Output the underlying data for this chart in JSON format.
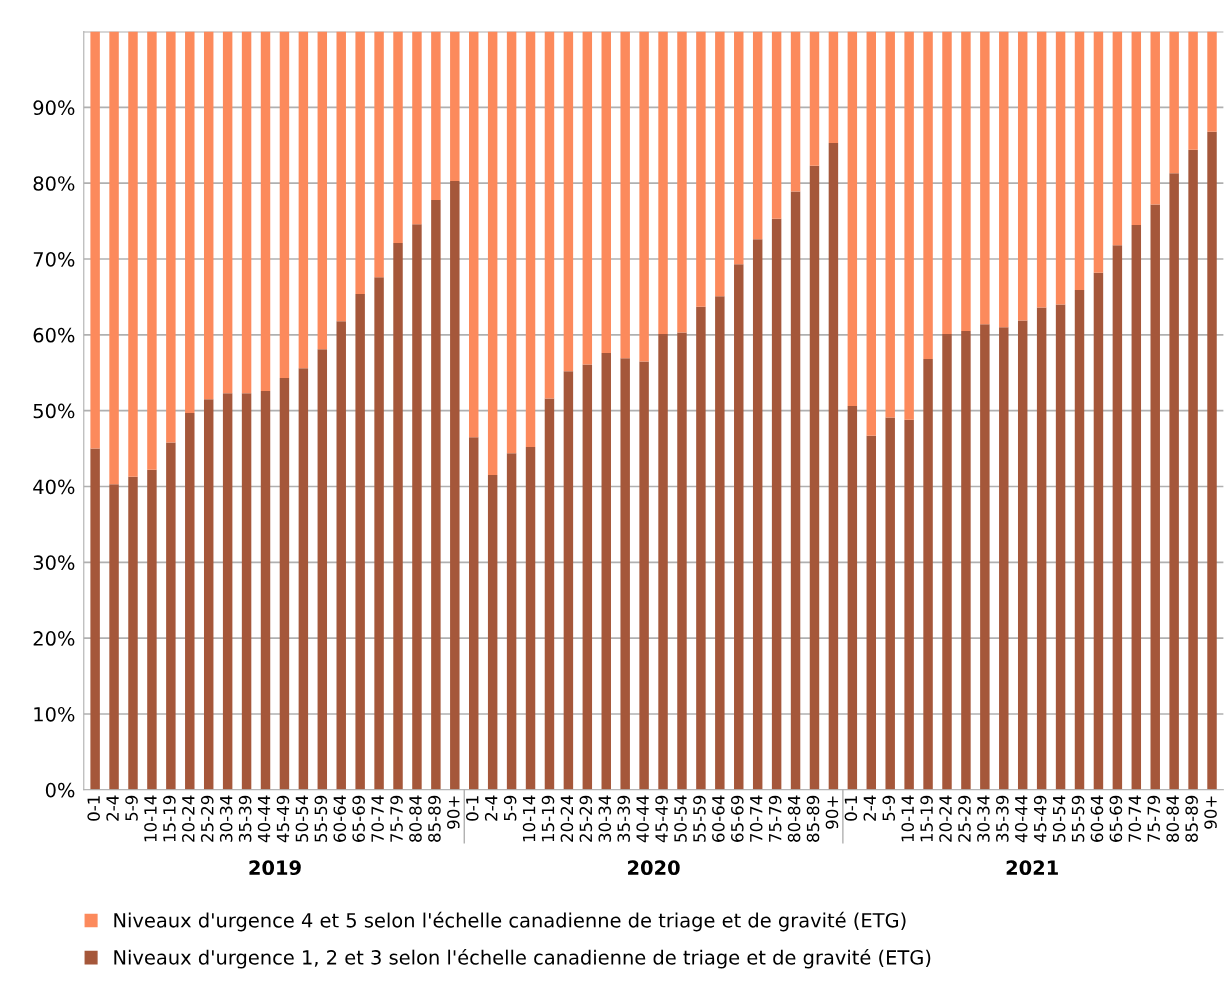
{
  "chart_data": {
    "type": "bar",
    "stacked": true,
    "categories": [
      "0-1",
      "2-4",
      "5-9",
      "10-14",
      "15-19",
      "20-24",
      "25-29",
      "30-34",
      "35-39",
      "40-44",
      "45-49",
      "50-54",
      "55-59",
      "60-64",
      "65-69",
      "70-74",
      "75-79",
      "80-84",
      "85-89",
      "90+",
      "0-1",
      "2-4",
      "5-9",
      "10-14",
      "15-19",
      "20-24",
      "25-29",
      "30-34",
      "35-39",
      "40-44",
      "45-49",
      "50-54",
      "55-59",
      "60-64",
      "65-69",
      "70-74",
      "75-79",
      "80-84",
      "85-89",
      "90+",
      "0-1",
      "2-4",
      "5-9",
      "10-14",
      "15-19",
      "20-24",
      "25-29",
      "30-34",
      "35-39",
      "40-44",
      "45-49",
      "50-54",
      "55-59",
      "60-64",
      "65-69",
      "70-74",
      "75-79",
      "80-84",
      "85-89",
      "90+"
    ],
    "series": [
      {
        "name": "Niveaux d'urgence 1, 2 et 3 selon l'échelle canadienne de triage et de gravité (ETG)",
        "color": "#a5573a",
        "values": [
          45.0,
          40.3,
          41.3,
          42.2,
          45.8,
          49.7,
          51.5,
          52.3,
          52.3,
          52.6,
          54.3,
          55.6,
          58.1,
          61.8,
          65.4,
          67.6,
          72.1,
          74.6,
          77.8,
          80.3,
          46.5,
          41.5,
          44.4,
          45.2,
          51.6,
          55.2,
          56.1,
          57.6,
          56.9,
          56.5,
          60.1,
          60.3,
          63.7,
          65.1,
          69.3,
          72.6,
          75.3,
          78.9,
          82.3,
          85.3,
          50.6,
          46.7,
          49.1,
          48.8,
          56.8,
          60.1,
          60.5,
          61.4,
          61.0,
          61.9,
          63.6,
          64.0,
          65.9,
          68.2,
          71.8,
          74.5,
          77.2,
          81.3,
          84.4,
          86.8
        ]
      },
      {
        "name": "Niveaux d'urgence 4 et 5 selon l'échelle canadienne de triage et de gravité (ETG)",
        "color": "#fc8a5c",
        "values": [
          55.0,
          59.7,
          58.7,
          57.8,
          54.2,
          50.3,
          48.5,
          47.7,
          47.7,
          47.4,
          45.7,
          44.4,
          41.9,
          38.2,
          34.6,
          32.4,
          27.9,
          25.4,
          22.2,
          19.7,
          53.5,
          58.5,
          55.6,
          54.8,
          48.4,
          44.8,
          43.9,
          42.4,
          43.1,
          43.5,
          39.9,
          39.7,
          36.3,
          34.9,
          30.7,
          27.4,
          24.7,
          21.1,
          17.7,
          14.7,
          49.4,
          53.3,
          50.9,
          51.2,
          43.2,
          39.9,
          39.5,
          38.6,
          39.0,
          38.1,
          36.4,
          36.0,
          34.1,
          31.8,
          28.2,
          25.5,
          22.8,
          18.7,
          15.6,
          13.2
        ]
      }
    ],
    "ylim": [
      0,
      100
    ],
    "yticks": [
      {
        "value": 0,
        "label": "0%"
      },
      {
        "value": 10,
        "label": "10%"
      },
      {
        "value": 20,
        "label": "20%"
      },
      {
        "value": 30,
        "label": "30%"
      },
      {
        "value": 40,
        "label": "40%"
      },
      {
        "value": 50,
        "label": "50%"
      },
      {
        "value": 60,
        "label": "60%"
      },
      {
        "value": 70,
        "label": "70%"
      },
      {
        "value": 80,
        "label": "80%"
      },
      {
        "value": 90,
        "label": "90%"
      },
      {
        "value": 100,
        "label": null
      }
    ],
    "annotations": [
      "2019",
      "2020",
      "2021"
    ],
    "grid": "y",
    "legend": "bottom"
  }
}
